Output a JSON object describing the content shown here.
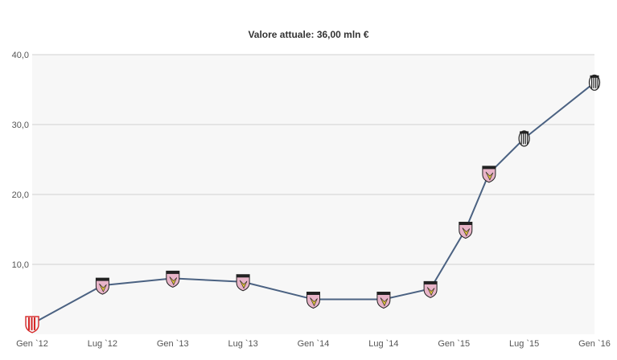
{
  "title": "Valore attuale: 36,00 mln €",
  "colors": {
    "line": "#4b6282",
    "grid": "#d0d0d0",
    "plot_bg": "#f7f7f7",
    "palermo_pink": "#e8b4c8",
    "palermo_black": "#222222",
    "juve_white": "#f4f4f4",
    "juve_black": "#222222",
    "vicenza_red": "#d62828"
  },
  "chart_data": {
    "type": "line",
    "title": "Valore attuale: 36,00 mln €",
    "xlabel": "",
    "ylabel": "",
    "ylim": [
      0,
      40
    ],
    "y_ticks": [
      "10,0",
      "20,0",
      "30,0",
      "40,0"
    ],
    "y_tick_values": [
      10,
      20,
      30,
      40
    ],
    "x_ticks": [
      "Gen `12",
      "Lug `12",
      "Gen `13",
      "Lug `13",
      "Gen `14",
      "Lug `14",
      "Gen `15",
      "Lug `15",
      "Gen `16"
    ],
    "x_tick_dates": [
      "2012-01",
      "2012-07",
      "2013-01",
      "2013-07",
      "2014-01",
      "2014-07",
      "2015-01",
      "2015-07",
      "2016-01"
    ],
    "grid": true,
    "legend": "none",
    "series": [
      {
        "points": [
          {
            "date": "2012-01",
            "value": 1.5,
            "club_icon": "vicenza-crest-icon"
          },
          {
            "date": "2012-07",
            "value": 7.0,
            "club_icon": "palermo-crest-icon"
          },
          {
            "date": "2013-01",
            "value": 8.0,
            "club_icon": "palermo-crest-icon"
          },
          {
            "date": "2013-07",
            "value": 7.5,
            "club_icon": "palermo-crest-icon"
          },
          {
            "date": "2014-01",
            "value": 5.0,
            "club_icon": "palermo-crest-icon"
          },
          {
            "date": "2014-07",
            "value": 5.0,
            "club_icon": "palermo-crest-icon"
          },
          {
            "date": "2014-11",
            "value": 6.5,
            "club_icon": "palermo-crest-icon"
          },
          {
            "date": "2015-02",
            "value": 15.0,
            "club_icon": "palermo-crest-icon"
          },
          {
            "date": "2015-04",
            "value": 23.0,
            "club_icon": "palermo-crest-icon"
          },
          {
            "date": "2015-07",
            "value": 28.0,
            "club_icon": "juventus-crest-icon"
          },
          {
            "date": "2016-01",
            "value": 36.0,
            "club_icon": "juventus-crest-icon"
          }
        ]
      }
    ]
  }
}
